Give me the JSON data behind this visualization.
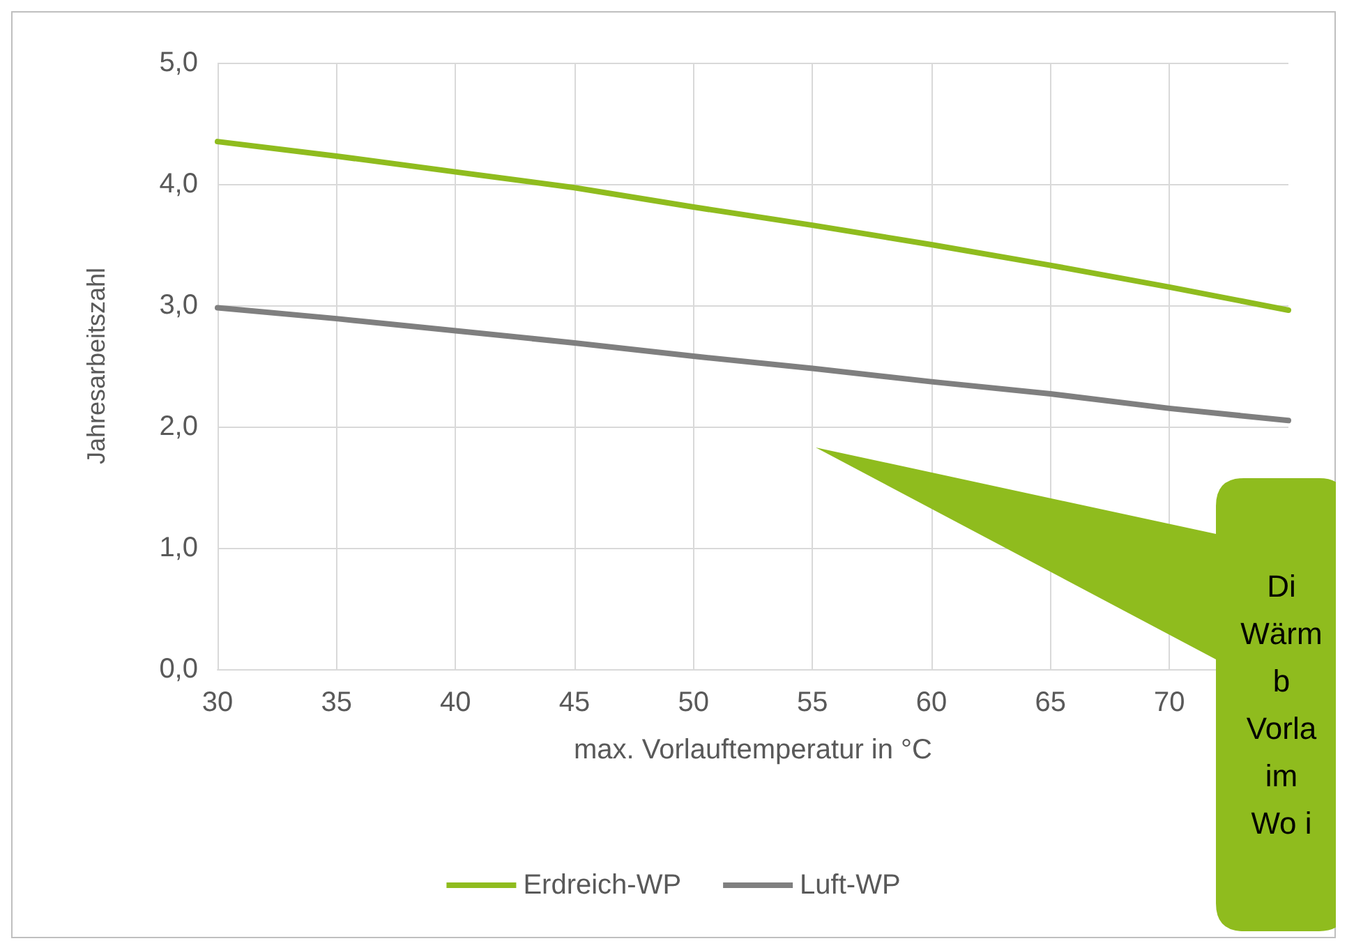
{
  "chart_data": {
    "type": "line",
    "xlabel": "max. Vorlauftemperatur in °C",
    "ylabel": "Jahresarbeitszahl",
    "x": [
      30,
      35,
      40,
      45,
      50,
      55,
      60,
      65,
      70,
      75
    ],
    "series": [
      {
        "name": "Erdreich-WP",
        "color": "#8fbc1e",
        "values": [
          4.35,
          4.23,
          4.1,
          3.97,
          3.81,
          3.66,
          3.5,
          3.33,
          3.15,
          2.96
        ]
      },
      {
        "name": "Luft-WP",
        "color": "#7f7f7f",
        "values": [
          2.98,
          2.89,
          2.79,
          2.69,
          2.58,
          2.48,
          2.37,
          2.27,
          2.15,
          2.05
        ]
      }
    ],
    "xlim": [
      30,
      75
    ],
    "xticks": [
      30,
      35,
      40,
      45,
      50,
      55,
      60,
      65,
      70
    ],
    "ylim": [
      0,
      5
    ],
    "yticks": [
      {
        "value": 0,
        "label": "0,0"
      },
      {
        "value": 1,
        "label": "1,0"
      },
      {
        "value": 2,
        "label": "2,0"
      },
      {
        "value": 3,
        "label": "3,0"
      },
      {
        "value": 4,
        "label": "4,0"
      },
      {
        "value": 5,
        "label": "5,0"
      }
    ],
    "grid": true,
    "legend": "bottom",
    "marker": "none",
    "line_style": "solid",
    "annotations": [
      "Di\nWärm\nb\nVorla\nim\nWo i"
    ]
  }
}
